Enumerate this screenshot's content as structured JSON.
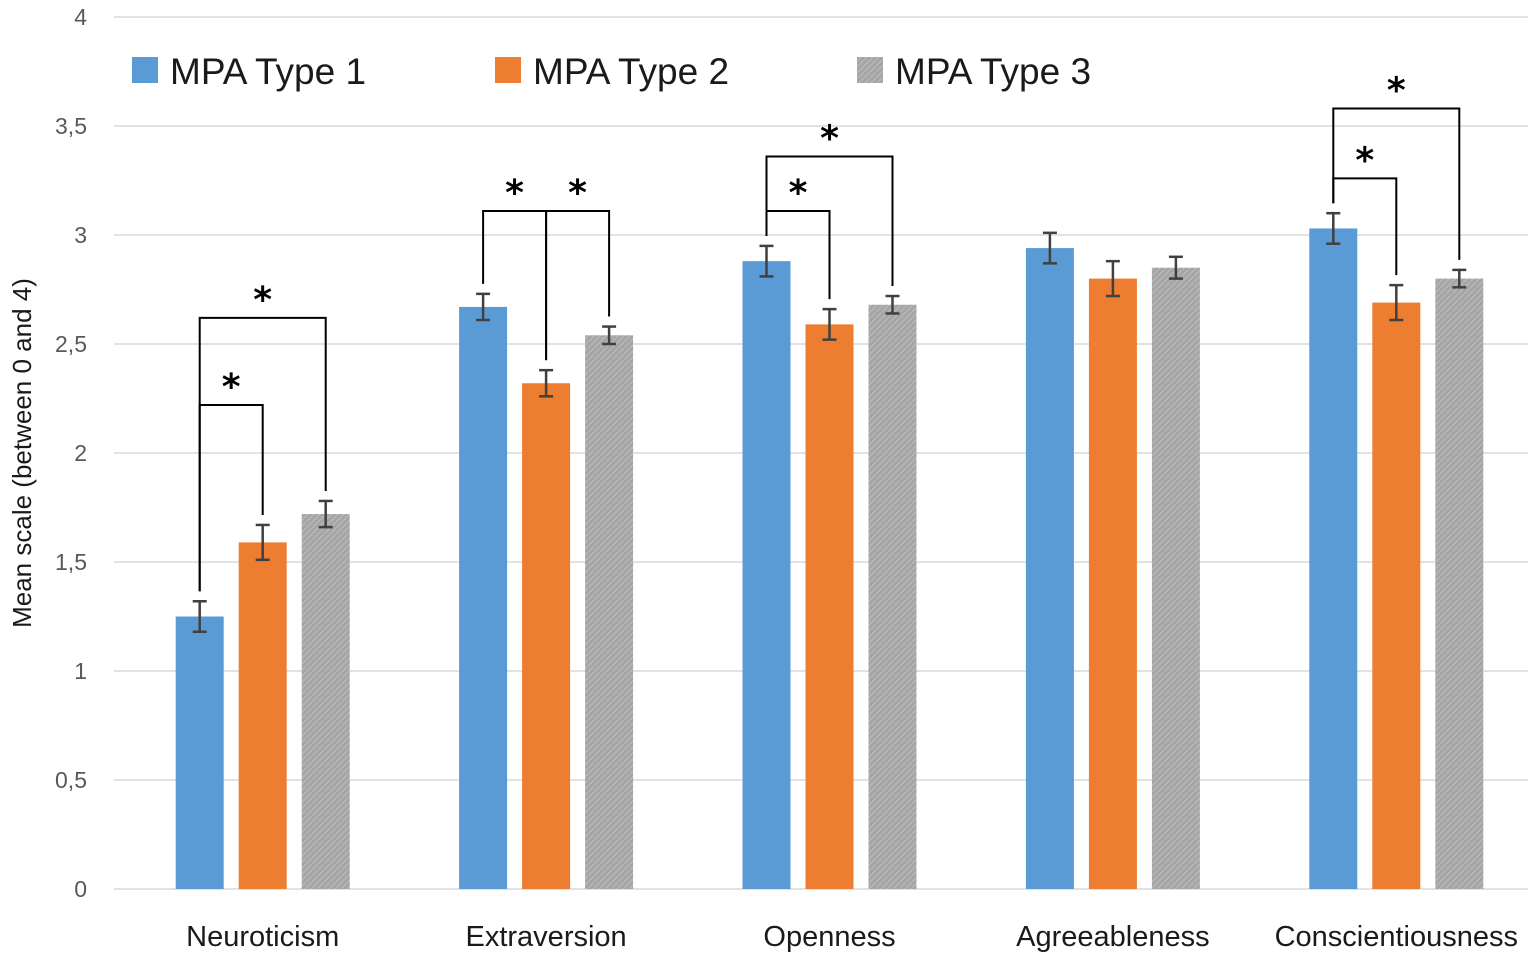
{
  "chart_data": {
    "type": "bar",
    "title": "",
    "xlabel": "",
    "ylabel": "Mean scale (between 0 and 4)",
    "ylim": [
      0,
      4
    ],
    "yticks": [
      0,
      0.5,
      1,
      1.5,
      2,
      2.5,
      3,
      3.5,
      4
    ],
    "ytick_labels": [
      "0",
      "0,5",
      "1",
      "1,5",
      "2",
      "2,5",
      "3",
      "3,5",
      "4"
    ],
    "grid": true,
    "legend_position": "top-left",
    "categories": [
      "Neuroticism",
      "Extraversion",
      "Openness",
      "Agreeableness",
      "Conscientiousness"
    ],
    "series": [
      {
        "name": "MPA Type 1",
        "color": "#5B9BD5",
        "values": [
          1.25,
          2.67,
          2.88,
          2.94,
          3.03
        ],
        "errors": [
          0.07,
          0.06,
          0.07,
          0.07,
          0.07
        ]
      },
      {
        "name": "MPA Type 2",
        "color": "#ED7D31",
        "values": [
          1.59,
          2.32,
          2.59,
          2.8,
          2.69
        ],
        "errors": [
          0.08,
          0.06,
          0.07,
          0.08,
          0.08
        ]
      },
      {
        "name": "MPA Type 3",
        "color": "#A5A5A5",
        "values": [
          1.72,
          2.54,
          2.68,
          2.85,
          2.8
        ],
        "errors": [
          0.06,
          0.04,
          0.04,
          0.05,
          0.04
        ]
      }
    ],
    "significance": [
      {
        "category": 0,
        "from": 0,
        "to": 1,
        "bracket_y": 2.22,
        "label": "*"
      },
      {
        "category": 0,
        "from": 0,
        "to": 2,
        "bracket_y": 2.62,
        "label": "*"
      },
      {
        "category": 1,
        "from": 0,
        "to": 1,
        "bracket_y": 3.11,
        "label": "*"
      },
      {
        "category": 1,
        "from": 1,
        "to": 2,
        "bracket_y": 3.11,
        "label": "*"
      },
      {
        "category": 2,
        "from": 0,
        "to": 1,
        "bracket_y": 3.11,
        "label": "*"
      },
      {
        "category": 2,
        "from": 0,
        "to": 2,
        "bracket_y": 3.36,
        "label": "*"
      },
      {
        "category": 4,
        "from": 0,
        "to": 1,
        "bracket_y": 3.26,
        "label": "*"
      },
      {
        "category": 4,
        "from": 0,
        "to": 2,
        "bracket_y": 3.58,
        "label": "*"
      }
    ]
  }
}
